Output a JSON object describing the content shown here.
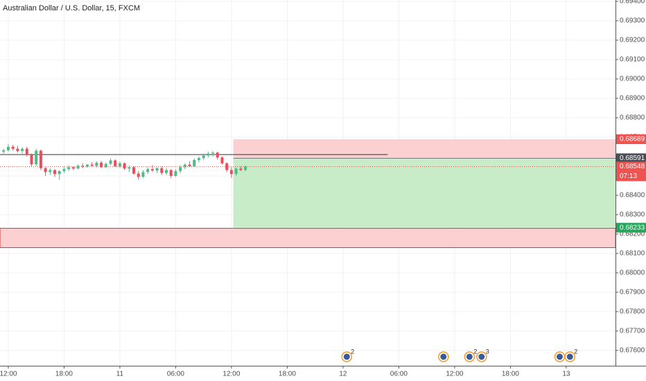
{
  "chart_data": {
    "type": "candlestick",
    "title": "Australian Dollar / U.S. Dollar, 15, FXCM",
    "xlim": [
      -0.89,
      65.3
    ],
    "xticks": [
      {
        "value": 0,
        "label": "12:00"
      },
      {
        "value": 6,
        "label": "18:00"
      },
      {
        "value": 12,
        "label": "11"
      },
      {
        "value": 18,
        "label": "06:00"
      },
      {
        "value": 24,
        "label": "12:00"
      },
      {
        "value": 30,
        "label": "18:00"
      },
      {
        "value": 36,
        "label": "12"
      },
      {
        "value": 42,
        "label": "06:00"
      },
      {
        "value": 48,
        "label": "12:00"
      },
      {
        "value": 54,
        "label": "18:00"
      },
      {
        "value": 60,
        "label": "13"
      }
    ],
    "ylim": [
      0.67521,
      0.69407
    ],
    "yticks": [
      {
        "value": 0.694,
        "label": "0.69400"
      },
      {
        "value": 0.693,
        "label": "0.69300"
      },
      {
        "value": 0.692,
        "label": "0.69200"
      },
      {
        "value": 0.691,
        "label": "0.69100"
      },
      {
        "value": 0.69,
        "label": "0.69000"
      },
      {
        "value": 0.689,
        "label": "0.68900"
      },
      {
        "value": 0.688,
        "label": "0.68800"
      },
      {
        "value": 0.687,
        "label": "0.68700"
      },
      {
        "value": 0.686,
        "label": "0.68600"
      },
      {
        "value": 0.685,
        "label": "0.68500"
      },
      {
        "value": 0.684,
        "label": "0.68400"
      },
      {
        "value": 0.683,
        "label": "0.68300"
      },
      {
        "value": 0.682,
        "label": "0.68200"
      },
      {
        "value": 0.681,
        "label": "0.68100"
      },
      {
        "value": 0.68,
        "label": "0.68000"
      },
      {
        "value": 0.679,
        "label": "0.67900"
      },
      {
        "value": 0.678,
        "label": "0.67800"
      },
      {
        "value": 0.677,
        "label": "0.67700"
      },
      {
        "value": 0.676,
        "label": "0.67600"
      }
    ],
    "grid": true,
    "up_color": "#53b987",
    "down_color": "#eb4d5c",
    "x": [
      -0.5,
      0,
      0.5,
      1,
      1.5,
      2,
      2.5,
      3,
      3.5,
      4,
      4.5,
      5,
      5.5,
      6,
      6.5,
      7,
      7.5,
      8,
      8.5,
      9,
      9.5,
      10,
      10.5,
      11,
      11.5,
      12,
      12.5,
      13,
      13.5,
      14,
      14.5,
      15,
      15.5,
      16,
      16.5,
      17,
      17.5,
      18,
      18.5,
      19,
      19.5,
      20,
      20.5,
      21,
      21.5,
      22,
      22.5,
      23,
      23.5,
      24,
      24.5,
      25,
      25.5
    ],
    "open": [
      0.68625,
      0.68632,
      0.6865,
      0.6864,
      0.68628,
      0.6864,
      0.6861,
      0.6856,
      0.6863,
      0.6854,
      0.6852,
      0.6853,
      0.6851,
      0.68525,
      0.68535,
      0.68545,
      0.68538,
      0.68552,
      0.68548,
      0.68558,
      0.68552,
      0.68568,
      0.68545,
      0.68562,
      0.6858,
      0.6855,
      0.68565,
      0.68538,
      0.68545,
      0.68512,
      0.68495,
      0.6852,
      0.68535,
      0.68528,
      0.6854,
      0.68515,
      0.6853,
      0.685,
      0.68525,
      0.68545,
      0.68558,
      0.6855,
      0.68582,
      0.68592,
      0.68605,
      0.68615,
      0.6862,
      0.68595,
      0.68565,
      0.6853,
      0.6851,
      0.68538,
      0.6853
    ],
    "high": [
      0.6864,
      0.68665,
      0.6866,
      0.68655,
      0.68648,
      0.6865,
      0.68615,
      0.6864,
      0.68635,
      0.68545,
      0.6854,
      0.68535,
      0.6853,
      0.68545,
      0.68555,
      0.6855,
      0.6856,
      0.68565,
      0.68562,
      0.6857,
      0.68575,
      0.68578,
      0.6857,
      0.6859,
      0.68585,
      0.68575,
      0.6857,
      0.68555,
      0.6855,
      0.68525,
      0.6853,
      0.68545,
      0.68555,
      0.68545,
      0.68548,
      0.6854,
      0.68535,
      0.68535,
      0.68555,
      0.68565,
      0.68575,
      0.6859,
      0.686,
      0.68615,
      0.68625,
      0.68628,
      0.68625,
      0.686,
      0.6857,
      0.68545,
      0.68545,
      0.6855,
      0.68555
    ],
    "low": [
      0.68615,
      0.68625,
      0.6863,
      0.6862,
      0.68615,
      0.686,
      0.6855,
      0.6855,
      0.6853,
      0.685,
      0.68505,
      0.68495,
      0.6848,
      0.68515,
      0.68525,
      0.6853,
      0.68535,
      0.6854,
      0.68542,
      0.68548,
      0.68545,
      0.6854,
      0.6854,
      0.68555,
      0.68545,
      0.6854,
      0.6853,
      0.6852,
      0.68505,
      0.6848,
      0.6849,
      0.6851,
      0.6852,
      0.68515,
      0.68505,
      0.68505,
      0.6849,
      0.68495,
      0.68515,
      0.68535,
      0.68545,
      0.68545,
      0.6857,
      0.6858,
      0.68595,
      0.686,
      0.68585,
      0.6856,
      0.6852,
      0.6849,
      0.685,
      0.68525,
      0.68525
    ],
    "close": [
      0.68632,
      0.6865,
      0.6864,
      0.68628,
      0.6864,
      0.6861,
      0.6856,
      0.6863,
      0.6854,
      0.6852,
      0.6853,
      0.6851,
      0.68525,
      0.68535,
      0.68545,
      0.68538,
      0.68552,
      0.68548,
      0.68558,
      0.68552,
      0.68568,
      0.68545,
      0.68562,
      0.6858,
      0.6855,
      0.68565,
      0.68538,
      0.68545,
      0.68512,
      0.68495,
      0.6852,
      0.68535,
      0.68528,
      0.6854,
      0.68515,
      0.6853,
      0.685,
      0.68525,
      0.68545,
      0.68558,
      0.6855,
      0.68582,
      0.68592,
      0.68605,
      0.68615,
      0.6862,
      0.68595,
      0.68565,
      0.6853,
      0.6851,
      0.68538,
      0.6853,
      0.68548
    ],
    "position": {
      "start_x": 24.2,
      "entry": 0.68591,
      "target": 0.68689,
      "stop": 0.68233,
      "profit_color": "#c8ebc8",
      "loss_color": "#fccfd1"
    },
    "zones": [
      {
        "top": 0.6823,
        "bottom": 0.6813,
        "color": "#fccfd1",
        "border": "#d33a3a"
      }
    ],
    "lines": [
      {
        "value": 0.6861,
        "x_end": 40.8,
        "color": "#333333"
      }
    ],
    "current_price": {
      "value": 0.68548,
      "color": "#ef5350"
    },
    "price_tags": [
      {
        "value": 0.68689,
        "label": "0.68689",
        "color": "#ef5350"
      },
      {
        "value": 0.68591,
        "label": "0.68591",
        "color": "#4a4f57"
      },
      {
        "value": 0.68548,
        "label": "0.68548",
        "color": "#ef5350"
      },
      {
        "value": 0.68233,
        "label": "0.68233",
        "color": "#26a65b"
      }
    ],
    "countdown": "07:13",
    "events": [
      {
        "x": 36.4,
        "count": 2
      },
      {
        "x": 46.8
      },
      {
        "x": 49.6,
        "count": 2
      },
      {
        "x": 50.9,
        "count": 3
      },
      {
        "x": 59.3
      },
      {
        "x": 60.4,
        "count": 2
      }
    ]
  }
}
